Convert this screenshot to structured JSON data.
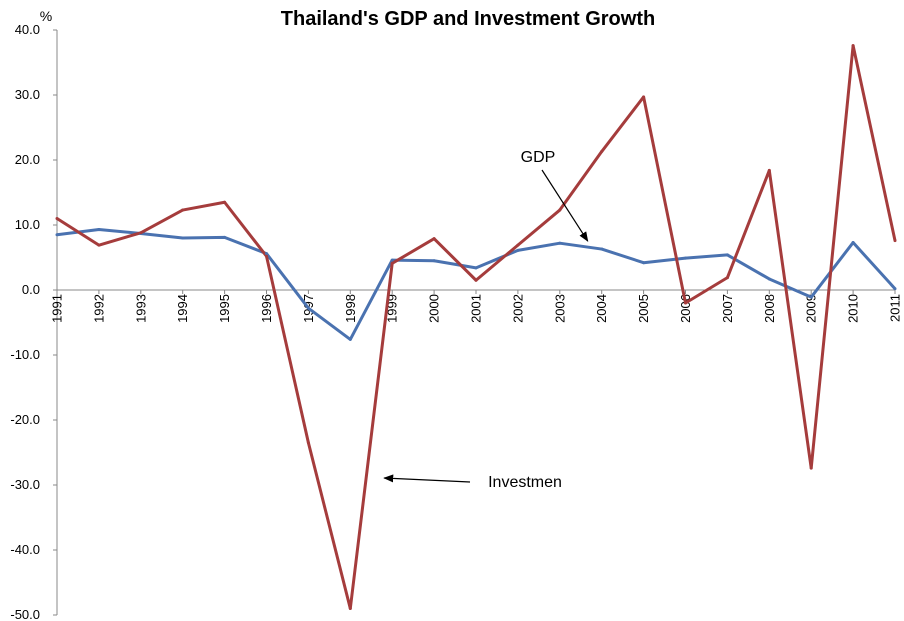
{
  "chart_data": {
    "type": "line",
    "title": "Thailand's GDP and Investment Growth",
    "ylabel": "%",
    "xlabel": "",
    "ylim": [
      -50,
      40
    ],
    "yticks": [
      "40.0",
      "30.0",
      "20.0",
      "10.0",
      "0.0",
      "-10.0",
      "-20.0",
      "-30.0",
      "-40.0",
      "-50.0"
    ],
    "categories": [
      "1991",
      "1992",
      "1993",
      "1994",
      "1995",
      "1996",
      "1997",
      "1998",
      "1999",
      "2000",
      "2001",
      "2002",
      "2003",
      "2004",
      "2005",
      "2006",
      "2007",
      "2008",
      "2009",
      "2010",
      "2011"
    ],
    "grid": false,
    "legend": "none",
    "series": [
      {
        "name": "GDP",
        "color": "#4a72b0",
        "values": [
          8.5,
          9.3,
          8.7,
          8.0,
          8.1,
          5.6,
          -2.8,
          -7.6,
          4.6,
          4.5,
          3.4,
          6.1,
          7.2,
          6.3,
          4.2,
          4.9,
          5.4,
          1.7,
          -1.1,
          7.3,
          0.2
        ]
      },
      {
        "name": "Investmen",
        "color": "#a53c3c",
        "values": [
          11.0,
          6.9,
          8.8,
          12.3,
          13.5,
          5.2,
          -23.5,
          -49.0,
          4.1,
          7.9,
          1.5,
          6.9,
          12.3,
          21.3,
          29.7,
          -2.0,
          1.9,
          18.4,
          -27.4,
          37.6,
          7.6
        ]
      }
    ],
    "annotations": [
      {
        "text": "GDP",
        "target_series": "GDP",
        "target_category": "2004"
      },
      {
        "text": "Investmen",
        "target_series": "Investmen",
        "target_category": "1999"
      }
    ]
  }
}
